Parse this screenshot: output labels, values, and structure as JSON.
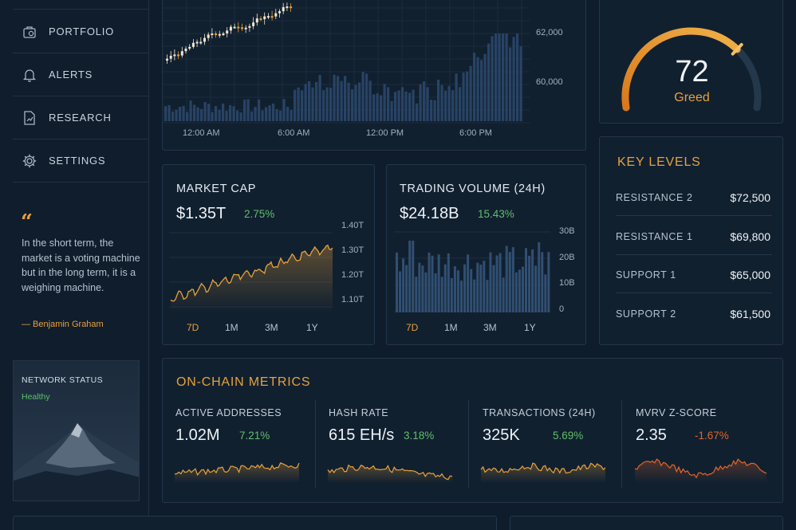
{
  "sidebar": {
    "items": [
      {
        "label": "PORTFOLIO",
        "icon": "portfolio-icon"
      },
      {
        "label": "ALERTS",
        "icon": "bell-icon"
      },
      {
        "label": "RESEARCH",
        "icon": "document-chart-icon"
      },
      {
        "label": "SETTINGS",
        "icon": "gear-icon"
      }
    ],
    "quote": {
      "mark": "“",
      "text": "In the short term, the market is a voting machine but in the long term, it is a weighing machine.",
      "author": "— Benjamin Graham"
    },
    "network": {
      "title": "NETWORK STATUS",
      "status": "Healthy",
      "status_color": "#5fbf6a"
    }
  },
  "price_chart": {
    "y_ticks": [
      "62,000",
      "60,000"
    ],
    "x_ticks": [
      "12:00 AM",
      "6:00 AM",
      "12:00 PM",
      "6:00 PM"
    ]
  },
  "sentiment": {
    "value": "72",
    "label": "Greed",
    "level": 0.72
  },
  "market_cap": {
    "title": "MARKET CAP",
    "value": "$1.35T",
    "change": "2.75%",
    "y_ticks": [
      "1.40T",
      "1.30T",
      "1.20T",
      "1.10T"
    ],
    "tabs": [
      "7D",
      "1M",
      "3M",
      "1Y"
    ],
    "active_tab": "7D"
  },
  "trading_volume": {
    "title": "TRADING VOLUME (24H)",
    "value": "$24.18B",
    "change": "15.43%",
    "y_ticks": [
      "30B",
      "20B",
      "10B",
      "0"
    ],
    "tabs": [
      "7D",
      "1M",
      "3M",
      "1Y"
    ],
    "active_tab": "7D"
  },
  "key_levels": {
    "title": "KEY LEVELS",
    "rows": [
      {
        "name": "RESISTANCE 2",
        "value": "$72,500"
      },
      {
        "name": "RESISTANCE 1",
        "value": "$69,800"
      },
      {
        "name": "SUPPORT 1",
        "value": "$65,000"
      },
      {
        "name": "SUPPORT 2",
        "value": "$61,500"
      }
    ]
  },
  "onchain": {
    "title": "ON-CHAIN METRICS",
    "metrics": [
      {
        "label": "ACTIVE ADDRESSES",
        "value": "1.02M",
        "change": "7.21%",
        "direction": "up"
      },
      {
        "label": "HASH RATE",
        "value": "615 EH/s",
        "change": "3.18%",
        "direction": "up"
      },
      {
        "label": "TRANSACTIONS (24H)",
        "value": "325K",
        "change": "5.69%",
        "direction": "up"
      },
      {
        "label": "MVRV Z-SCORE",
        "value": "2.35",
        "change": "-1.67%",
        "direction": "down"
      }
    ]
  },
  "colors": {
    "accent": "#e8a13c",
    "up": "#5fbf6a",
    "down": "#e0652c",
    "bar": "#2d4a6e"
  }
}
